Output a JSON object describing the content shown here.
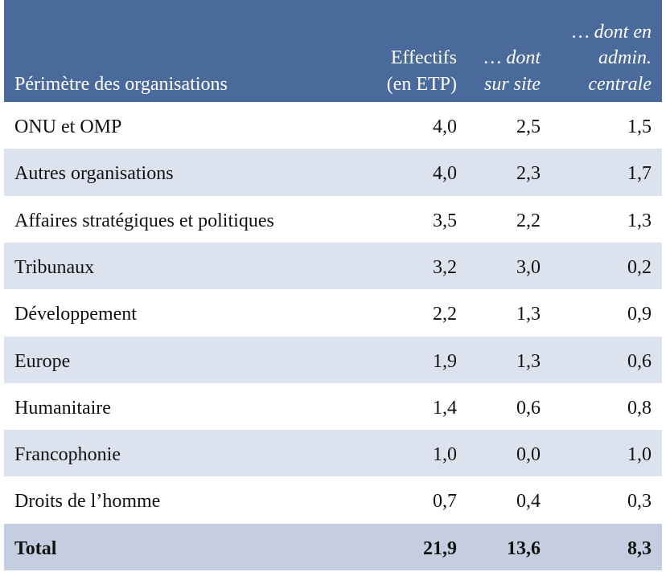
{
  "table": {
    "header": [
      "Périmètre des organisations",
      [
        "Effectifs",
        "(en ETP)"
      ],
      [
        "… dont",
        "sur site"
      ],
      [
        "… dont en",
        "admin.",
        "centrale"
      ]
    ],
    "rows": [
      [
        "ONU et OMP",
        "4,0",
        "2,5",
        "1,5"
      ],
      [
        "Autres organisations",
        "4,0",
        "2,3",
        "1,7"
      ],
      [
        "Affaires stratégiques et politiques",
        "3,5",
        "2,2",
        "1,3"
      ],
      [
        "Tribunaux",
        "3,2",
        "3,0",
        "0,2"
      ],
      [
        "Développement",
        "2,2",
        "1,3",
        "0,9"
      ],
      [
        "Europe",
        "1,9",
        "1,3",
        "0,6"
      ],
      [
        "Humanitaire",
        "1,4",
        "0,6",
        "0,8"
      ],
      [
        "Francophonie",
        "1,0",
        "0,0",
        "1,0"
      ],
      [
        "Droits de l’homme",
        "0,7",
        "0,4",
        "0,3"
      ]
    ],
    "total": [
      "Total",
      "21,9",
      "13,6",
      "8,3"
    ]
  }
}
